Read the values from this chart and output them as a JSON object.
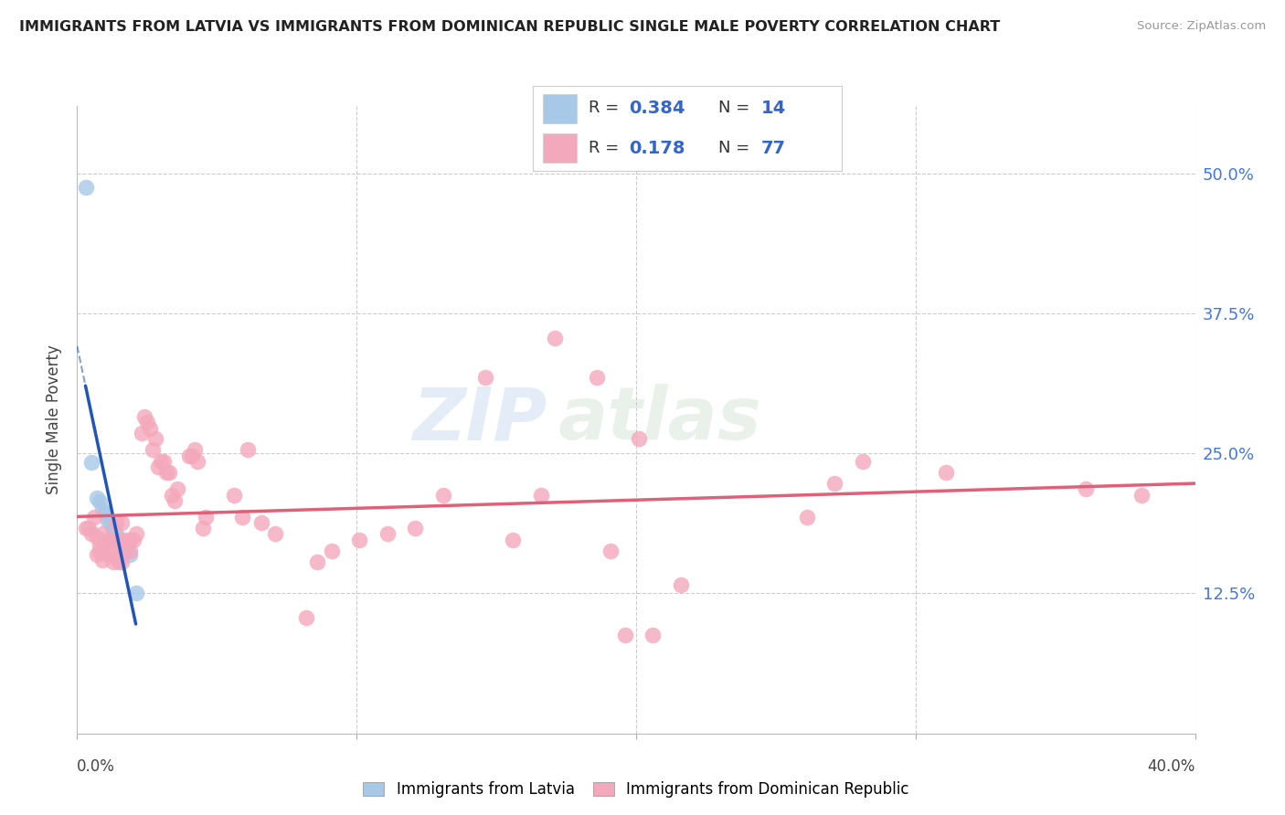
{
  "title": "IMMIGRANTS FROM LATVIA VS IMMIGRANTS FROM DOMINICAN REPUBLIC SINGLE MALE POVERTY CORRELATION CHART",
  "source": "Source: ZipAtlas.com",
  "ylabel": "Single Male Poverty",
  "ytick_labels": [
    "50.0%",
    "37.5%",
    "25.0%",
    "12.5%"
  ],
  "ytick_values": [
    0.5,
    0.375,
    0.25,
    0.125
  ],
  "xlim": [
    0.0,
    0.4
  ],
  "ylim": [
    0.0,
    0.56
  ],
  "color_latvia": "#a8c8e8",
  "color_dr": "#f4a8bc",
  "trendline_color_latvia": "#2255bb",
  "trendline_color_dr": "#e0607a",
  "watermark_zip": "ZIP",
  "watermark_atlas": "atlas",
  "latvia_points": [
    [
      0.003,
      0.487
    ],
    [
      0.005,
      0.242
    ],
    [
      0.007,
      0.21
    ],
    [
      0.008,
      0.207
    ],
    [
      0.009,
      0.2
    ],
    [
      0.01,
      0.196
    ],
    [
      0.011,
      0.19
    ],
    [
      0.012,
      0.187
    ],
    [
      0.013,
      0.18
    ],
    [
      0.014,
      0.178
    ],
    [
      0.015,
      0.173
    ],
    [
      0.017,
      0.168
    ],
    [
      0.019,
      0.16
    ],
    [
      0.021,
      0.125
    ]
  ],
  "dr_points": [
    [
      0.003,
      0.183
    ],
    [
      0.004,
      0.183
    ],
    [
      0.005,
      0.178
    ],
    [
      0.006,
      0.193
    ],
    [
      0.007,
      0.175
    ],
    [
      0.007,
      0.16
    ],
    [
      0.008,
      0.162
    ],
    [
      0.008,
      0.168
    ],
    [
      0.009,
      0.155
    ],
    [
      0.009,
      0.178
    ],
    [
      0.01,
      0.163
    ],
    [
      0.01,
      0.168
    ],
    [
      0.011,
      0.16
    ],
    [
      0.011,
      0.172
    ],
    [
      0.012,
      0.173
    ],
    [
      0.012,
      0.165
    ],
    [
      0.013,
      0.163
    ],
    [
      0.013,
      0.153
    ],
    [
      0.014,
      0.157
    ],
    [
      0.014,
      0.188
    ],
    [
      0.015,
      0.173
    ],
    [
      0.015,
      0.153
    ],
    [
      0.016,
      0.188
    ],
    [
      0.016,
      0.153
    ],
    [
      0.017,
      0.173
    ],
    [
      0.017,
      0.163
    ],
    [
      0.019,
      0.173
    ],
    [
      0.019,
      0.163
    ],
    [
      0.02,
      0.173
    ],
    [
      0.021,
      0.178
    ],
    [
      0.023,
      0.268
    ],
    [
      0.024,
      0.283
    ],
    [
      0.025,
      0.278
    ],
    [
      0.026,
      0.272
    ],
    [
      0.027,
      0.253
    ],
    [
      0.028,
      0.263
    ],
    [
      0.029,
      0.238
    ],
    [
      0.03,
      0.243
    ],
    [
      0.031,
      0.243
    ],
    [
      0.032,
      0.233
    ],
    [
      0.033,
      0.233
    ],
    [
      0.034,
      0.213
    ],
    [
      0.035,
      0.208
    ],
    [
      0.036,
      0.218
    ],
    [
      0.04,
      0.248
    ],
    [
      0.041,
      0.248
    ],
    [
      0.042,
      0.253
    ],
    [
      0.043,
      0.243
    ],
    [
      0.045,
      0.183
    ],
    [
      0.046,
      0.193
    ],
    [
      0.056,
      0.213
    ],
    [
      0.059,
      0.193
    ],
    [
      0.061,
      0.253
    ],
    [
      0.066,
      0.188
    ],
    [
      0.071,
      0.178
    ],
    [
      0.082,
      0.103
    ],
    [
      0.086,
      0.153
    ],
    [
      0.091,
      0.163
    ],
    [
      0.101,
      0.173
    ],
    [
      0.111,
      0.178
    ],
    [
      0.121,
      0.183
    ],
    [
      0.131,
      0.213
    ],
    [
      0.146,
      0.318
    ],
    [
      0.156,
      0.173
    ],
    [
      0.166,
      0.213
    ],
    [
      0.171,
      0.353
    ],
    [
      0.186,
      0.318
    ],
    [
      0.191,
      0.163
    ],
    [
      0.196,
      0.088
    ],
    [
      0.201,
      0.263
    ],
    [
      0.206,
      0.088
    ],
    [
      0.216,
      0.133
    ],
    [
      0.261,
      0.193
    ],
    [
      0.271,
      0.223
    ],
    [
      0.281,
      0.243
    ],
    [
      0.311,
      0.233
    ],
    [
      0.361,
      0.218
    ],
    [
      0.381,
      0.213
    ]
  ]
}
